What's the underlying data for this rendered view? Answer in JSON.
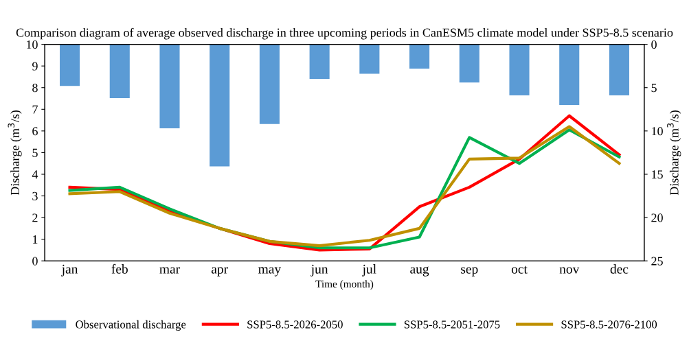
{
  "chart_data": {
    "type": "line",
    "title": "Comparison diagram of average observed discharge in three upcoming periods in CanESM5 climate model under SSP5-8.5 scenario",
    "xlabel": "Time (month)",
    "ylabel": "Discharge (m$^{3}$/s)",
    "y2label": "Discharge (m$^{3}$/s)",
    "categories": [
      "jan",
      "feb",
      "mar",
      "apr",
      "may",
      "jun",
      "jul",
      "aug",
      "sep",
      "oct",
      "nov",
      "dec"
    ],
    "ylim": [
      0,
      10
    ],
    "yticks": [
      0,
      1,
      2,
      3,
      4,
      5,
      6,
      7,
      8,
      9,
      10
    ],
    "y2lim": [
      25,
      0
    ],
    "y2ticks": [
      0,
      5,
      10,
      15,
      20,
      25
    ],
    "grid": false,
    "legend": "bottom",
    "marker": "none",
    "line_style": "solid",
    "series": [
      {
        "name": "Observational discharge",
        "type": "bar",
        "axis": "y2",
        "color": "#5b9bd5",
        "values": [
          4.8,
          6.2,
          9.7,
          14.1,
          9.2,
          4.0,
          3.4,
          2.8,
          4.4,
          5.9,
          7.0,
          5.9
        ]
      },
      {
        "name": "SSP5-8.5-2026-2050",
        "color": "#ff0000",
        "values": [
          3.4,
          3.3,
          2.3,
          1.5,
          0.8,
          0.5,
          0.55,
          2.5,
          3.4,
          4.7,
          6.7,
          4.9
        ]
      },
      {
        "name": "SSP5-8.5-2051-2075",
        "color": "#00b050",
        "values": [
          3.25,
          3.4,
          2.4,
          1.5,
          0.9,
          0.6,
          0.6,
          1.1,
          5.7,
          4.5,
          6.05,
          4.8
        ]
      },
      {
        "name": "SSP5-8.5-2076-2100",
        "color": "#bf9000",
        "values": [
          3.1,
          3.2,
          2.2,
          1.5,
          0.9,
          0.7,
          0.95,
          1.5,
          4.7,
          4.75,
          6.2,
          4.5
        ]
      }
    ]
  }
}
